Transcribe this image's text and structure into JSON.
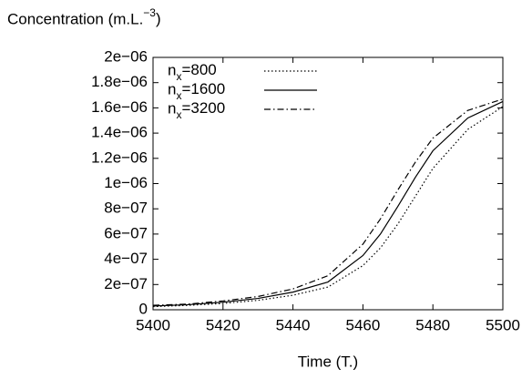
{
  "chart_data": {
    "type": "line",
    "y_label": "Concentration (m.L.−3)",
    "x_label": "Time (T.)",
    "x": [
      5400,
      5410,
      5420,
      5430,
      5440,
      5450,
      5460,
      5465,
      5470,
      5475,
      5480,
      5490,
      5500
    ],
    "series": [
      {
        "name": "nx=800",
        "color": "#000000",
        "dash": "dotted",
        "values": [
          2.5e-08,
          3.5e-08,
          5e-08,
          7.5e-08,
          1.15e-07,
          1.8e-07,
          3.5e-07,
          4.9e-07,
          6.8e-07,
          9e-07,
          1.12e-06,
          1.43e-06,
          1.61e-06
        ]
      },
      {
        "name": "nx=1600",
        "color": "#000000",
        "dash": "solid",
        "values": [
          3e-08,
          4e-08,
          6e-08,
          9e-08,
          1.4e-07,
          2.2e-07,
          4.3e-07,
          6e-07,
          8.2e-07,
          1.05e-06,
          1.26e-06,
          1.52e-06,
          1.65e-06
        ]
      },
      {
        "name": "nx=3200",
        "color": "#000000",
        "dash": "dashdot",
        "values": [
          3.5e-08,
          4.5e-08,
          7e-08,
          1.05e-07,
          1.65e-07,
          2.7e-07,
          5.2e-07,
          7.2e-07,
          9.5e-07,
          1.17e-06,
          1.36e-06,
          1.58e-06,
          1.67e-06
        ]
      }
    ],
    "xlim": [
      5400,
      5500
    ],
    "xticks": [
      5400,
      5420,
      5440,
      5460,
      5480,
      5500
    ],
    "ylim": [
      0,
      2e-06
    ],
    "yticks": [
      0,
      {
        "value": 2e-07,
        "label": "2e−07"
      },
      {
        "value": 4e-07,
        "label": "4e−07"
      },
      {
        "value": 6e-07,
        "label": "6e−07"
      },
      {
        "value": 8e-07,
        "label": "8e−07"
      },
      {
        "value": 1e-06,
        "label": "1e−06"
      },
      {
        "value": 1.2e-06,
        "label": "1.2e−06"
      },
      {
        "value": 1.4e-06,
        "label": "1.4e−06"
      },
      {
        "value": 1.6e-06,
        "label": "1.6e−06"
      },
      {
        "value": 1.8e-06,
        "label": "1.8e−06"
      },
      {
        "value": 2e-06,
        "label": "2e−06"
      }
    ],
    "legend": "upper-left",
    "grid": false
  }
}
